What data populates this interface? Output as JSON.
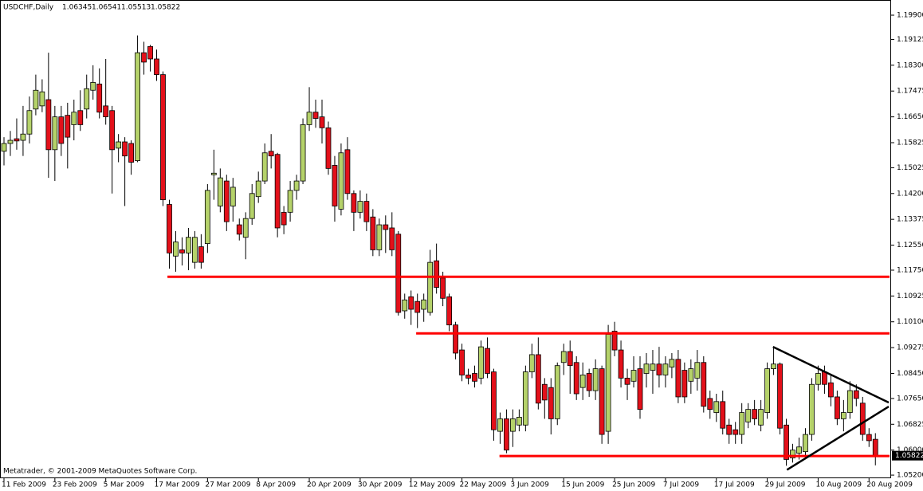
{
  "chart_data": {
    "type": "candlestick",
    "title": "USDCHF,Daily",
    "copyright": "Metatrader, © 2001-2009 MetaQuotes Software Corp.",
    "up_color": "#b5d26a",
    "down_color": "#e3101a",
    "outline_color": "#000000",
    "categories": [
      "11 Feb 2009",
      null,
      null,
      null,
      null,
      null,
      null,
      null,
      "23 Feb 2009",
      null,
      null,
      null,
      null,
      null,
      null,
      null,
      "5 Mar 2009",
      null,
      null,
      null,
      null,
      null,
      null,
      null,
      "17 Mar 2009",
      null,
      null,
      null,
      null,
      null,
      null,
      null,
      "27 Mar 2009",
      null,
      null,
      null,
      null,
      null,
      null,
      null,
      "8 Apr 2009",
      null,
      null,
      null,
      null,
      null,
      null,
      null,
      "20 Apr 2009",
      null,
      null,
      null,
      null,
      null,
      null,
      null,
      "30 Apr 2009",
      null,
      null,
      null,
      null,
      null,
      null,
      null,
      "12 May 2009",
      null,
      null,
      null,
      null,
      null,
      null,
      null,
      "22 May 2009",
      null,
      null,
      null,
      null,
      null,
      null,
      null,
      "3 Jun 2009",
      null,
      null,
      null,
      null,
      null,
      null,
      null,
      "15 Jun 2009",
      null,
      null,
      null,
      null,
      null,
      null,
      null,
      "25 Jun 2009",
      null,
      null,
      null,
      null,
      null,
      null,
      null,
      "7 Jul 2009",
      null,
      null,
      null,
      null,
      null,
      null,
      null,
      "17 Jul 2009",
      null,
      null,
      null,
      null,
      null,
      null,
      null,
      "29 Jul 2009",
      null,
      null,
      null,
      null,
      null,
      null,
      null,
      "10 Aug 2009",
      null,
      null,
      null,
      null,
      null,
      null,
      null,
      "20 Aug 2009",
      null
    ],
    "open": [
      1.1555,
      1.158,
      1.1595,
      1.159,
      1.161,
      1.169,
      1.17,
      1.172,
      1.156,
      1.1665,
      1.167,
      1.164,
      1.1685,
      1.169,
      1.175,
      1.177,
      1.17,
      1.1685,
      1.1565,
      1.1585,
      1.158,
      1.1525,
      1.187,
      1.189,
      1.185,
      1.18,
      1.1385,
      1.122,
      1.124,
      1.123,
      1.12,
      1.125,
      1.126,
      1.148,
      1.138,
      1.146,
      1.138,
      1.132,
      1.128,
      1.134,
      1.141,
      1.146,
      1.1555,
      1.1545,
      1.136,
      1.136,
      1.143,
      1.146,
      1.164,
      1.168,
      1.1665,
      1.163,
      1.151,
      1.137,
      1.156,
      1.142,
      1.136,
      1.1395,
      1.1345,
      1.124,
      1.132,
      1.131,
      1.129,
      1.1045,
      1.109,
      1.1075,
      1.105,
      1.104,
      1.1205,
      1.115,
      1.109,
      1.1,
      1.092,
      1.084,
      1.0845,
      1.083,
      1.0925,
      1.085,
      1.066,
      1.07,
      1.066,
      1.068,
      1.068,
      1.085,
      1.0905,
      1.081,
      1.08,
      1.07,
      1.088,
      1.0915,
      1.088,
      1.08,
      1.0845,
      1.079,
      1.086,
      1.066,
      1.098,
      1.092,
      1.083,
      1.082,
      1.086,
      1.0845,
      1.0855,
      1.0875,
      1.084,
      1.0865,
      1.089,
      1.0855,
      1.082,
      1.083,
      1.088,
      1.0765,
      1.072,
      1.0755,
      1.068,
      1.0665,
      1.065,
      1.069,
      1.073,
      1.068,
      1.072,
      1.086,
      1.0875,
      1.068,
      1.0575,
      1.059,
      1.0595,
      1.065,
      1.081,
      1.085,
      1.0815,
      1.077,
      1.07,
      1.072,
      1.079,
      1.075,
      1.065,
      1.06345
    ],
    "high": [
      1.16,
      1.162,
      1.166,
      1.17,
      1.173,
      1.18,
      1.1785,
      1.187,
      1.17,
      1.17,
      1.171,
      1.172,
      1.175,
      1.18,
      1.183,
      1.182,
      1.185,
      1.17,
      1.161,
      1.16,
      1.159,
      1.1925,
      1.1905,
      1.1895,
      1.188,
      1.181,
      1.14,
      1.13,
      1.128,
      1.131,
      1.13,
      1.129,
      1.145,
      1.156,
      1.15,
      1.148,
      1.147,
      1.134,
      1.136,
      1.145,
      1.149,
      1.158,
      1.161,
      1.155,
      1.138,
      1.146,
      1.148,
      1.166,
      1.176,
      1.172,
      1.172,
      1.165,
      1.154,
      1.158,
      1.16,
      1.143,
      1.143,
      1.142,
      1.137,
      1.134,
      1.135,
      1.136,
      1.13,
      1.11,
      1.111,
      1.11,
      1.11,
      1.124,
      1.126,
      1.117,
      1.11,
      1.101,
      1.094,
      1.086,
      1.087,
      1.095,
      1.096,
      1.086,
      1.072,
      1.073,
      1.073,
      1.073,
      1.087,
      1.094,
      1.096,
      1.083,
      1.083,
      1.088,
      1.094,
      1.095,
      1.09,
      1.088,
      1.086,
      1.089,
      1.087,
      1.1,
      1.101,
      1.095,
      1.086,
      1.09,
      1.09,
      1.091,
      1.092,
      1.093,
      1.09,
      1.091,
      1.092,
      1.088,
      1.089,
      1.092,
      1.09,
      1.079,
      1.078,
      1.079,
      1.07,
      1.069,
      1.075,
      1.075,
      1.076,
      1.076,
      1.088,
      1.093,
      1.088,
      1.07,
      1.062,
      1.064,
      1.067,
      1.083,
      1.087,
      1.087,
      1.084,
      1.079,
      1.076,
      1.082,
      1.081,
      1.077,
      1.067,
      1.06541
    ],
    "low": [
      1.151,
      1.154,
      1.156,
      1.154,
      1.158,
      1.167,
      1.168,
      1.147,
      1.146,
      1.154,
      1.15,
      1.159,
      1.162,
      1.166,
      1.172,
      1.166,
      1.164,
      1.142,
      1.152,
      1.138,
      1.148,
      1.152,
      1.18,
      1.181,
      1.178,
      1.138,
      1.118,
      1.117,
      1.119,
      1.1175,
      1.118,
      1.118,
      1.123,
      1.14,
      1.136,
      1.13,
      1.133,
      1.127,
      1.121,
      1.132,
      1.139,
      1.145,
      1.15,
      1.128,
      1.129,
      1.133,
      1.14,
      1.145,
      1.162,
      1.163,
      1.158,
      1.148,
      1.133,
      1.135,
      1.14,
      1.13,
      1.134,
      1.13,
      1.122,
      1.122,
      1.123,
      1.122,
      1.103,
      1.102,
      1.1,
      1.099,
      1.101,
      1.103,
      1.11,
      1.106,
      1.098,
      1.089,
      1.082,
      1.081,
      1.08,
      1.081,
      1.083,
      1.063,
      1.062,
      1.059,
      1.061,
      1.066,
      1.066,
      1.083,
      1.073,
      1.07,
      1.065,
      1.068,
      1.084,
      1.078,
      1.076,
      1.076,
      1.077,
      1.076,
      1.062,
      1.062,
      1.09,
      1.08,
      1.076,
      1.08,
      1.07,
      1.08,
      1.078,
      1.08,
      1.08,
      1.083,
      1.075,
      1.075,
      1.078,
      1.079,
      1.072,
      1.07,
      1.069,
      1.065,
      1.062,
      1.062,
      1.062,
      1.067,
      1.068,
      1.066,
      1.07,
      1.084,
      1.065,
      1.055,
      1.056,
      1.057,
      1.057,
      1.063,
      1.079,
      1.078,
      1.074,
      1.068,
      1.066,
      1.07,
      1.074,
      1.063,
      1.061,
      1.05513
    ],
    "close": [
      1.158,
      1.159,
      1.1588,
      1.161,
      1.1685,
      1.175,
      1.1745,
      1.156,
      1.1665,
      1.158,
      1.16,
      1.168,
      1.164,
      1.1755,
      1.1775,
      1.168,
      1.1665,
      1.156,
      1.1585,
      1.154,
      1.152,
      1.187,
      1.184,
      1.185,
      1.18,
      1.14,
      1.123,
      1.1265,
      1.123,
      1.128,
      1.128,
      1.12,
      1.143,
      1.1485,
      1.147,
      1.133,
      1.144,
      1.129,
      1.134,
      1.142,
      1.146,
      1.155,
      1.154,
      1.131,
      1.132,
      1.143,
      1.146,
      1.164,
      1.168,
      1.166,
      1.163,
      1.15,
      1.138,
      1.155,
      1.142,
      1.136,
      1.1395,
      1.133,
      1.124,
      1.132,
      1.1305,
      1.124,
      1.104,
      1.108,
      1.105,
      1.104,
      1.108,
      1.12,
      1.112,
      1.1085,
      1.1,
      1.091,
      1.084,
      1.083,
      1.082,
      1.093,
      1.0845,
      1.0665,
      1.07,
      1.06,
      1.07,
      1.0705,
      1.085,
      1.0905,
      1.075,
      1.076,
      1.07,
      1.087,
      1.0915,
      1.087,
      1.078,
      1.084,
      1.079,
      1.086,
      1.065,
      1.097,
      1.092,
      1.083,
      1.081,
      1.0855,
      1.073,
      1.0875,
      1.0875,
      1.084,
      1.0875,
      1.089,
      1.077,
      1.077,
      1.086,
      1.088,
      1.074,
      1.073,
      1.0755,
      1.067,
      1.065,
      1.065,
      1.072,
      1.073,
      1.07,
      1.073,
      1.086,
      1.0875,
      1.067,
      1.057,
      1.06,
      1.061,
      1.065,
      1.081,
      1.0845,
      1.081,
      1.077,
      1.07,
      1.072,
      1.079,
      1.0765,
      1.065,
      1.063,
      1.05822
    ],
    "ylim": [
      1.051,
      1.2013
    ],
    "yticks": [
      {
        "value": 1.199,
        "label": "1.19900"
      },
      1.19125,
      {
        "value": 1.183,
        "label": "1.18300"
      },
      1.17475,
      {
        "value": 1.1665,
        "label": "1.16650"
      },
      1.15825,
      1.15025,
      {
        "value": 1.142,
        "label": "1.14200"
      },
      1.13375,
      {
        "value": 1.1255,
        "label": "1.12550"
      },
      {
        "value": 1.1175,
        "label": "1.11750"
      },
      1.10925,
      {
        "value": 1.101,
        "label": "1.10100"
      },
      1.09275,
      {
        "value": 1.0845,
        "label": "1.08450"
      },
      {
        "value": 1.0765,
        "label": "1.07650"
      },
      1.06825,
      {
        "value": 1.06,
        "label": "1.06000"
      },
      {
        "value": 1.052,
        "label": "1.05200"
      }
    ],
    "hlines": [
      {
        "value": 1.1154,
        "x": 25.7,
        "color": "#ff0000"
      },
      {
        "value": 1.0973,
        "x": 64.8,
        "color": "#ff0000"
      },
      {
        "value": 1.0581,
        "x": 77.9,
        "color": "#ff0000"
      }
    ],
    "trendlines": [
      {
        "x": [
          120.9,
          139.1
        ],
        "y": [
          1.093,
          1.0752
        ],
        "color": "#000000"
      },
      {
        "x": [
          123.1,
          139.1
        ],
        "y": [
          1.0537,
          1.0739
        ],
        "color": "#000000"
      }
    ]
  }
}
